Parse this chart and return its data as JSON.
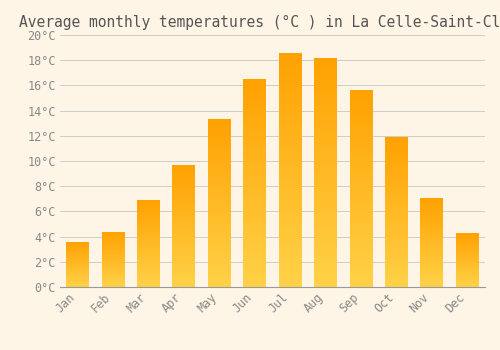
{
  "months": [
    "Jan",
    "Feb",
    "Mar",
    "Apr",
    "May",
    "Jun",
    "Jul",
    "Aug",
    "Sep",
    "Oct",
    "Nov",
    "Dec"
  ],
  "values": [
    3.6,
    4.4,
    6.9,
    9.7,
    13.3,
    16.5,
    18.6,
    18.2,
    15.6,
    11.9,
    7.1,
    4.3
  ],
  "title": "Average monthly temperatures (°C ) in La Celle-Saint-Cloud",
  "bar_color_bottom": "#FFCC44",
  "bar_color_top": "#FFA000",
  "background_color": "#FFF5E6",
  "grid_color": "#CCCCCC",
  "text_color": "#888888",
  "title_color": "#555555",
  "ylim": [
    0,
    20
  ],
  "ytick_step": 2,
  "title_fontsize": 10.5,
  "tick_fontsize": 8.5,
  "bar_width": 0.65,
  "figsize": [
    5.0,
    3.5
  ],
  "dpi": 100
}
